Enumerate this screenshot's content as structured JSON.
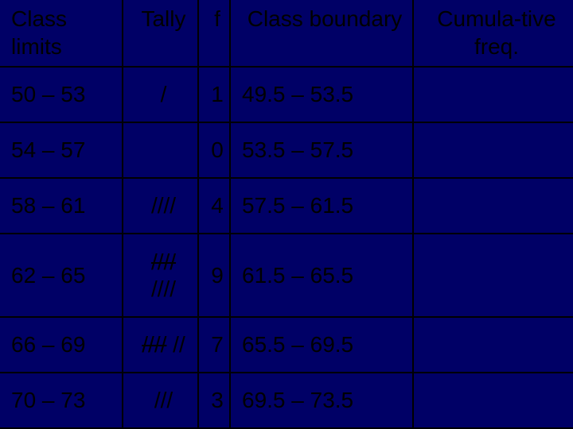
{
  "headers": {
    "col1": "Class limits",
    "col2": "Tally",
    "col3": "f",
    "col4": "Class boundary",
    "col5": "Cumula-tive freq."
  },
  "rows": [
    {
      "limits": "50 – 53",
      "tally": "/",
      "tally_strike": false,
      "tally_extra": "",
      "f": "1",
      "boundary": "49.5 – 53.5",
      "cumfreq": ""
    },
    {
      "limits": "54 – 57",
      "tally": "",
      "tally_strike": false,
      "tally_extra": "",
      "f": "0",
      "boundary": "53.5 – 57.5",
      "cumfreq": ""
    },
    {
      "limits": "58 – 61",
      "tally": "////",
      "tally_strike": false,
      "tally_extra": "",
      "f": "4",
      "boundary": "57.5 – 61.5",
      "cumfreq": ""
    },
    {
      "limits": "62 – 65",
      "tally": "////",
      "tally_strike": true,
      "tally_extra": "////",
      "f": "9",
      "boundary": "61.5 – 65.5",
      "cumfreq": ""
    },
    {
      "limits": "66 – 69",
      "tally": "////",
      "tally_strike": true,
      "tally_suffix": " //",
      "tally_extra": "",
      "f": "7",
      "boundary": "65.5 – 69.5",
      "cumfreq": ""
    },
    {
      "limits": "70 – 73",
      "tally": "///",
      "tally_strike": false,
      "tally_extra": "",
      "f": "3",
      "boundary": "69.5 – 73.5",
      "cumfreq": ""
    }
  ],
  "style": {
    "background_color": "#000066",
    "text_color": "#000000",
    "border_color": "#000000",
    "font_size": 28,
    "font_family": "Arial"
  }
}
